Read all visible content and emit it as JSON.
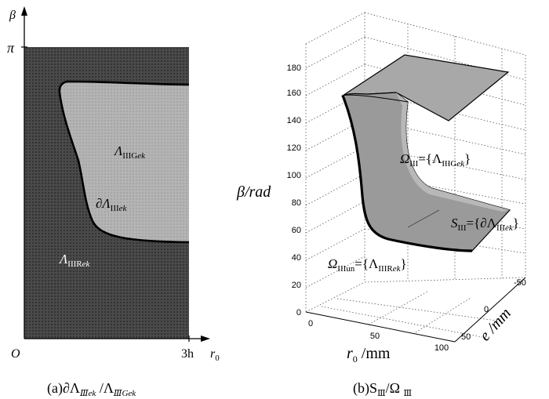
{
  "panel_a": {
    "y_axis_label": "β",
    "y_top_label": "π",
    "origin_label": "O",
    "x_end_label": "3h",
    "x_axis_label": "r",
    "x_axis_sub": "0",
    "region_green": {
      "lam": "Λ",
      "sub": "IIIG",
      "sub_ek": "ek"
    },
    "boundary": {
      "partial": "∂Λ",
      "sub": "III",
      "sub_ek": "ek"
    },
    "region_red": {
      "lam": "Λ",
      "sub": "IIIR",
      "sub_ek": "ek"
    },
    "caption": {
      "prefix": "(a)∂Λ",
      "sub1": "Ⅲek",
      "slash": " /Λ",
      "sub2": "ⅢGek"
    }
  },
  "panel_b": {
    "z_label": "β/rad",
    "z_ticks": [
      "0",
      "20",
      "40",
      "60",
      "80",
      "100",
      "120",
      "140",
      "160",
      "180"
    ],
    "x_label": "r",
    "x_label_sub": "0",
    "x_label_unit": " /mm",
    "x_ticks": [
      "0",
      "50",
      "100"
    ],
    "y_label": "e /mm",
    "y_ticks": [
      "-50",
      "0",
      "50"
    ],
    "omega_green": {
      "pre": "Ω",
      "sub": "III",
      "eq": "={Λ",
      "sub2": "IIIG",
      "sub_ek": "ek",
      "close": "}"
    },
    "surface_s": {
      "pre": "S",
      "sub": "III",
      "eq": "={∂Λ",
      "sub2": "III",
      "sub_ek": "ek",
      "close": "}"
    },
    "omega_unsafe": {
      "pre": "Ω",
      "sub": "IIIun",
      "eq": "={Λ",
      "sub2": "IIIR",
      "sub_ek": "ek",
      "close": "}"
    },
    "caption": {
      "prefix": "(b)S",
      "sub1": "Ⅲ",
      "slash": "/Ω ",
      "sub2": "Ⅲ"
    }
  }
}
